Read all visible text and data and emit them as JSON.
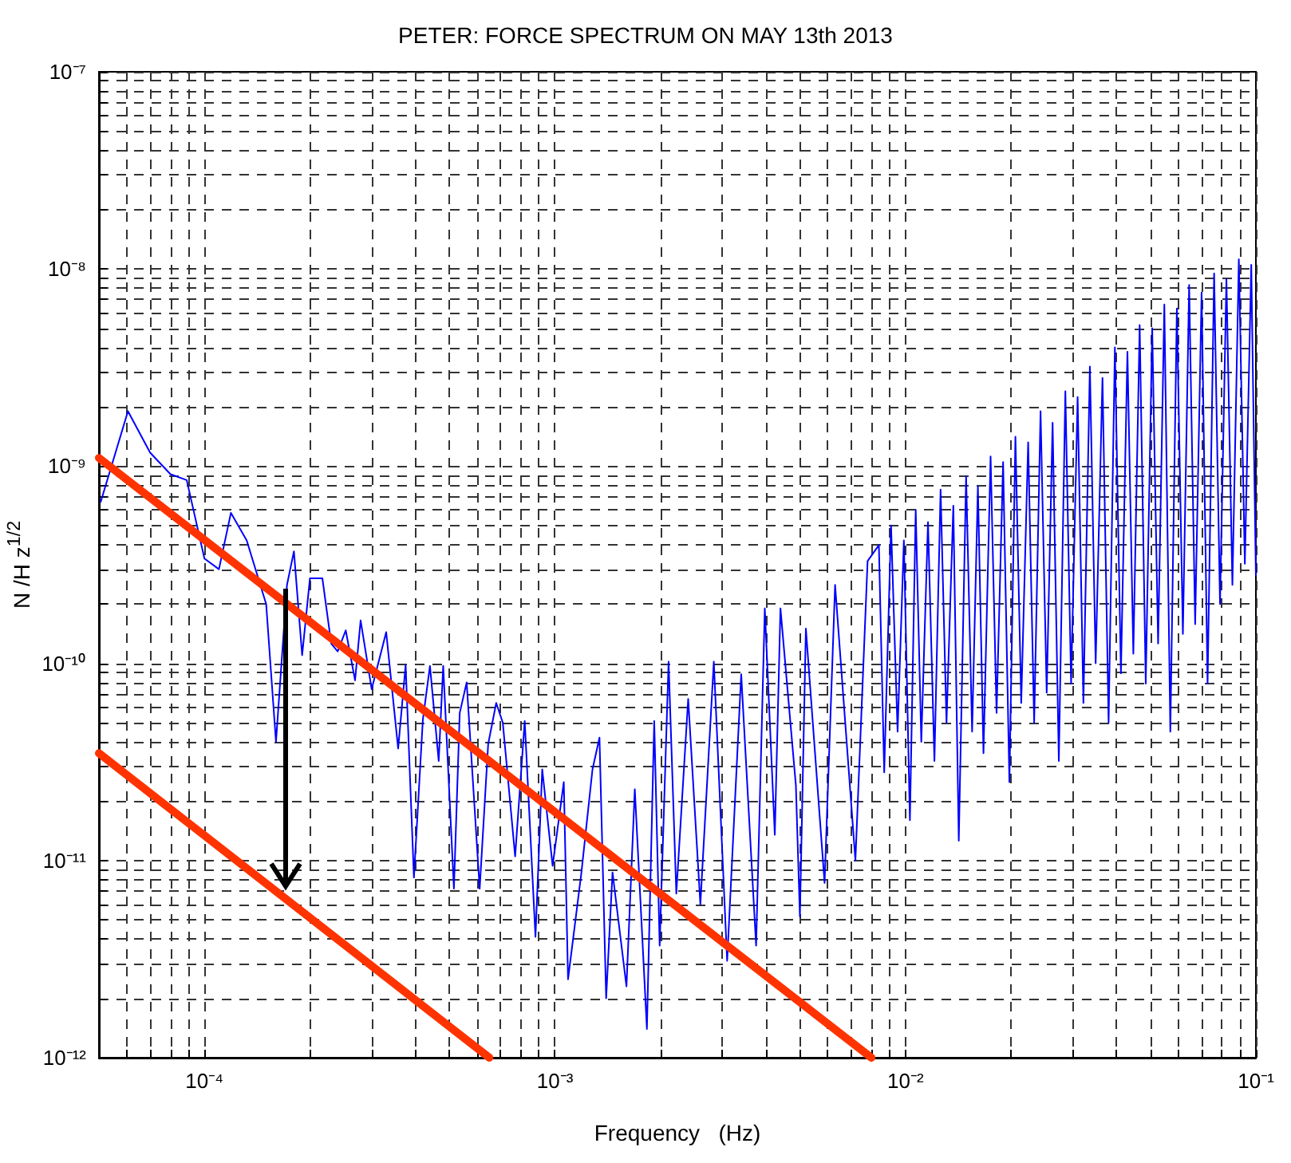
{
  "chart_data": {
    "type": "line",
    "title": "PETER: FORCE SPECTRUM ON MAY 13th 2013",
    "xlabel": "Frequency   (Hz)",
    "ylabel": "N /H z$^{1/2}$",
    "log": "xy",
    "grid": true,
    "marker": "none",
    "line_style": "solid",
    "xlim": [
      5e-05,
      0.1
    ],
    "ylim": [
      1e-12,
      1e-07
    ],
    "xticks": [
      {
        "value": 0.0001,
        "label": "10⁻⁴"
      },
      {
        "value": 0.001,
        "label": "10⁻³"
      },
      {
        "value": 0.01,
        "label": "10⁻²"
      },
      {
        "value": 0.1,
        "label": "10⁻¹"
      }
    ],
    "yticks": [
      {
        "value": 1e-12,
        "label": "10⁻¹²"
      },
      {
        "value": 1e-11,
        "label": "10⁻¹¹"
      },
      {
        "value": 1e-10,
        "label": "10⁻¹⁰"
      },
      {
        "value": 1e-09,
        "label": "10⁻⁹"
      },
      {
        "value": 1e-08,
        "label": "10⁻⁸"
      },
      {
        "value": 1e-07,
        "label": "10⁻⁷"
      }
    ],
    "series": [
      {
        "color": "#0000ff",
        "x": [
          5.06e-05,
          6.05e-05,
          7e-05,
          8e-05,
          8.9e-05,
          0.0001,
          0.00011,
          0.000119,
          0.000132,
          0.00015,
          0.00016,
          0.000172,
          0.00018,
          0.00019,
          0.0002,
          0.000217,
          0.00023,
          0.00024,
          0.000253,
          0.000269,
          0.000279,
          0.0003,
          0.00033,
          0.000357,
          0.000375,
          0.000396,
          0.00042,
          0.00044,
          0.000466,
          0.00048,
          0.000515,
          0.000535,
          0.00056,
          0.00061,
          0.000645,
          0.00068,
          0.00071,
          0.00077,
          0.00082,
          0.00088,
          0.00092,
          0.000985,
          0.00106,
          0.00109,
          0.00119,
          0.00128,
          0.00134,
          0.0014,
          0.00146,
          0.0016,
          0.00169,
          0.00183,
          0.00192,
          0.00199,
          0.00211,
          0.00222,
          0.0024,
          0.0026,
          0.00284,
          0.0031,
          0.0034,
          0.00375,
          0.00397,
          0.00424,
          0.0044,
          0.00487,
          0.005,
          0.0052,
          0.00588,
          0.0063,
          0.0072,
          0.0078,
          0.0084,
          0.0087,
          0.0091,
          0.0095,
          0.0099,
          0.0103,
          0.0107,
          0.0111,
          0.0116,
          0.0121,
          0.0126,
          0.0131,
          0.0137,
          0.0142,
          0.0149,
          0.0155,
          0.0161,
          0.0167,
          0.0175,
          0.0182,
          0.019,
          0.0198,
          0.0206,
          0.0214,
          0.0224,
          0.0233,
          0.0243,
          0.0253,
          0.0263,
          0.0274,
          0.0286,
          0.0297,
          0.031,
          0.0322,
          0.0336,
          0.0349,
          0.0365,
          0.038,
          0.0396,
          0.0412,
          0.043,
          0.0447,
          0.0466,
          0.0485,
          0.0506,
          0.0526,
          0.0548,
          0.057,
          0.0595,
          0.0619,
          0.0645,
          0.0671,
          0.07,
          0.0728,
          0.076,
          0.079,
          0.0824,
          0.0857,
          0.0894,
          0.093,
          0.097,
          0.1
        ],
        "values": [
          6.6e-10,
          1.9e-09,
          1.17e-09,
          9.1e-10,
          8.5e-10,
          3.4e-10,
          3e-10,
          5.8e-10,
          4.2e-10,
          2e-10,
          4e-11,
          2.5e-10,
          3.7e-10,
          1.1e-10,
          2.7e-10,
          2.7e-10,
          1.26e-10,
          1.15e-10,
          1.47e-10,
          8.2e-11,
          1.65e-10,
          7.4e-11,
          1.44e-10,
          3.7e-11,
          9.8e-11,
          8.2e-12,
          5.2e-11,
          9.7e-11,
          3.2e-11,
          9.7e-11,
          7.2e-12,
          5.6e-11,
          8e-11,
          7.2e-12,
          3.9e-11,
          6.3e-11,
          5e-11,
          1.05e-11,
          5.1e-11,
          4.1e-12,
          2.9e-11,
          9.4e-12,
          2.5e-11,
          2.5e-12,
          8.7e-12,
          2.9e-11,
          4.2e-11,
          2e-12,
          8.7e-12,
          2.3e-12,
          2.3e-11,
          1.4e-12,
          5.1e-11,
          3.7e-12,
          1.02e-10,
          6.8e-12,
          6.6e-11,
          6e-12,
          1.02e-10,
          3.1e-12,
          8.8e-11,
          3.7e-12,
          1.9e-10,
          1.35e-11,
          1.9e-10,
          2.4e-11,
          5.2e-12,
          1.5e-10,
          7.7e-12,
          2.5e-10,
          1e-11,
          3.3e-10,
          3.98e-10,
          2.8e-11,
          5e-10,
          4.5e-11,
          4.2e-10,
          1.6e-11,
          6e-10,
          4e-11,
          5.2e-10,
          3.2e-11,
          7.6e-10,
          5e-11,
          6.3e-10,
          1.26e-11,
          8.9e-10,
          4.5e-11,
          7.9e-10,
          3.5e-11,
          1.12e-09,
          5.6e-11,
          1.05e-09,
          2.5e-11,
          1.41e-09,
          6.3e-11,
          1.32e-09,
          5e-11,
          1.9e-09,
          7.1e-11,
          1.66e-09,
          3.2e-11,
          2.4e-09,
          7.9e-11,
          2.24e-09,
          6.3e-11,
          3.2e-09,
          1e-10,
          2.8e-09,
          5e-11,
          4e-09,
          8.9e-11,
          3.8e-09,
          1.12e-10,
          5.2e-09,
          7.9e-11,
          5e-09,
          1.26e-10,
          6.6e-09,
          4.5e-11,
          6.3e-09,
          1.41e-10,
          8.3e-09,
          1.58e-10,
          7.6e-09,
          7.9e-11,
          9.5e-09,
          2e-10,
          8.9e-09,
          2.5e-10,
          1.12e-08,
          3.2e-10,
          1.05e-08,
          2.8e-10
        ]
      },
      {
        "type": "line",
        "color": "#ff3300",
        "x": [
          5e-05,
          0.008
        ],
        "values": [
          1.1e-09,
          1e-12
        ]
      },
      {
        "type": "line",
        "color": "#ff3300",
        "x": [
          5e-05,
          0.00065
        ],
        "values": [
          3.5e-11,
          1e-12
        ]
      }
    ]
  }
}
